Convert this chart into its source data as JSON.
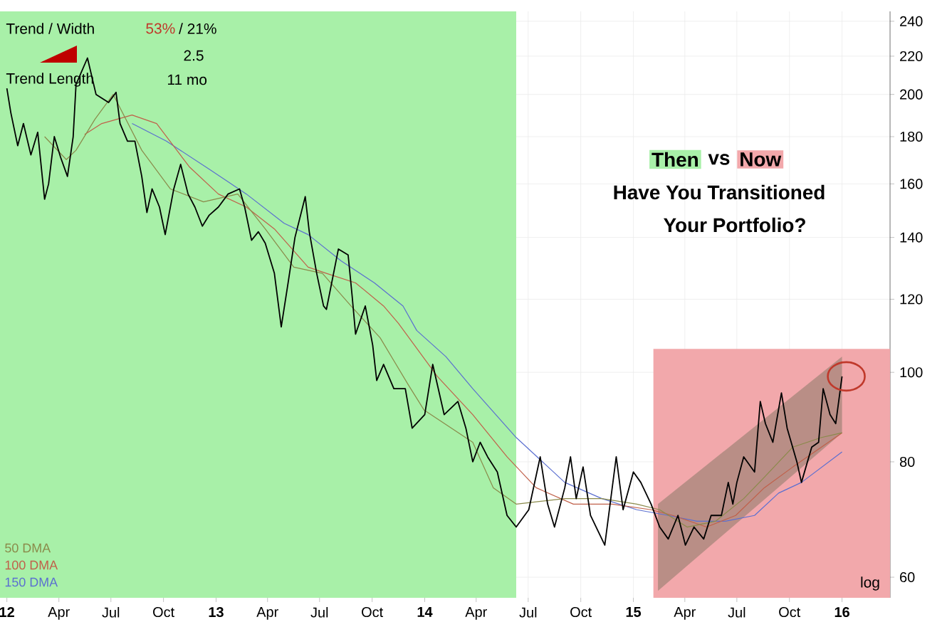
{
  "chart_data": {
    "type": "line",
    "annotations": [
      "Trend / Width",
      "53%",
      "/ 21%",
      "2.5",
      "Trend Length",
      "11 mo",
      "Then",
      "vs",
      "Now",
      "Have You Transitioned",
      "Your Portfolio?",
      "log"
    ],
    "xlim": [
      "2011-12-20",
      "2016-03-25"
    ],
    "ylim": [
      57,
      246
    ],
    "log": true,
    "grid": true,
    "legend": "bottom left",
    "xticks": [
      {
        "value": "2012-01-01",
        "label": "12"
      },
      {
        "value": "2012-04-01",
        "label": "Apr"
      },
      {
        "value": "2012-07-01",
        "label": "Jul"
      },
      {
        "value": "2012-10-01",
        "label": "Oct"
      },
      {
        "value": "2013-01-01",
        "label": "13"
      },
      {
        "value": "2013-04-01",
        "label": "Apr"
      },
      {
        "value": "2013-07-01",
        "label": "Jul"
      },
      {
        "value": "2013-10-01",
        "label": "Oct"
      },
      {
        "value": "2014-01-01",
        "label": "14"
      },
      {
        "value": "2014-04-01",
        "label": "Apr"
      },
      {
        "value": "2014-07-01",
        "label": "Jul"
      },
      {
        "value": "2014-10-01",
        "label": "Oct"
      },
      {
        "value": "2015-01-01",
        "label": "15"
      },
      {
        "value": "2015-04-01",
        "label": "Apr"
      },
      {
        "value": "2015-07-01",
        "label": "Jul"
      },
      {
        "value": "2015-10-01",
        "label": "Oct"
      },
      {
        "value": "2016-01-01",
        "label": "16"
      }
    ],
    "yticks": [
      60,
      80,
      100,
      120,
      140,
      160,
      180,
      200,
      220,
      240
    ],
    "bands": [
      {
        "axis": "x",
        "from": "2011-12-20",
        "to": "2014-06-10",
        "color": "#a8f0a8"
      }
    ],
    "series": [
      {
        "type": "area",
        "color": "#f2a8ab",
        "x": [
          "2015-02-05",
          "2016-03-25"
        ],
        "values": [
          null,
          null
        ],
        "lower": [
          57,
          57
        ],
        "upper": [
          106,
          106
        ]
      },
      {
        "type": "area",
        "color": "#b98e86",
        "x": [
          "2015-02-13",
          "2016-01-01"
        ],
        "values": [
          null,
          null
        ],
        "lower": [
          58,
          86
        ],
        "upper": [
          72,
          104
        ]
      },
      {
        "name": "150 DMA",
        "color": "#5b6fd0",
        "x": [
          "2012-08-07",
          "2012-10-06",
          "2012-12-20",
          "2013-02-23",
          "2013-04-30",
          "2013-06-11",
          "2013-08-08",
          "2013-10-05",
          "2013-11-24",
          "2013-12-18",
          "2014-02-07",
          "2014-03-26",
          "2014-06-10",
          "2014-09-03",
          "2014-11-07",
          "2015-01-07",
          "2015-03-03",
          "2015-04-22",
          "2015-06-11",
          "2015-08-01",
          "2015-09-12",
          "2015-10-22",
          "2016-01-01"
        ],
        "values": [
          186,
          178,
          166,
          156,
          145,
          141,
          132,
          125,
          118,
          111,
          104,
          96,
          85,
          76,
          73,
          71,
          70,
          69,
          69,
          70,
          74,
          76,
          82
        ]
      },
      {
        "name": "100 DMA",
        "color": "#c0604a",
        "x": [
          "2012-05-16",
          "2012-06-15",
          "2012-08-07",
          "2012-09-19",
          "2012-11-15",
          "2013-01-05",
          "2013-02-23",
          "2013-04-13",
          "2013-06-11",
          "2013-07-13",
          "2013-09-02",
          "2013-10-21",
          "2013-11-16",
          "2014-01-23",
          "2014-03-26",
          "2014-05-25",
          "2014-07-15",
          "2014-09-18",
          "2014-11-25",
          "2015-02-01",
          "2015-03-11",
          "2015-05-09",
          "2015-06-29",
          "2015-08-18",
          "2015-10-07",
          "2015-11-26",
          "2016-01-01"
        ],
        "values": [
          181,
          186,
          190,
          186,
          167,
          156,
          151,
          143,
          130,
          128,
          125,
          118,
          113,
          99,
          90,
          81,
          75,
          72,
          72,
          71,
          70,
          68,
          70,
          75,
          79,
          83,
          86
        ]
      },
      {
        "name": "50 DMA",
        "color": "#8a8a4a",
        "x": [
          "2012-03-07",
          "2012-04-14",
          "2012-05-01",
          "2012-06-03",
          "2012-07-05",
          "2012-08-24",
          "2012-10-13",
          "2012-12-10",
          "2013-02-08",
          "2013-03-28",
          "2013-05-17",
          "2013-07-06",
          "2013-08-25",
          "2013-10-15",
          "2013-12-03",
          "2013-12-31",
          "2014-03-26",
          "2014-05-01",
          "2014-06-10",
          "2014-09-03",
          "2014-11-07",
          "2015-01-07",
          "2015-02-16",
          "2015-04-05",
          "2015-05-25",
          "2015-07-13",
          "2015-08-18",
          "2015-10-07",
          "2015-11-26",
          "2016-01-01"
        ],
        "values": [
          180,
          170,
          174,
          188,
          200,
          174,
          158,
          153,
          156,
          143,
          130,
          128,
          118,
          109,
          97,
          91,
          84,
          75,
          72,
          73,
          73,
          72,
          71,
          68,
          69,
          73,
          77,
          83,
          85,
          86
        ]
      },
      {
        "color": "#000000",
        "x": [
          "2012-01-01",
          "2012-01-08",
          "2012-01-20",
          "2012-01-30",
          "2012-02-12",
          "2012-02-24",
          "2012-03-07",
          "2012-03-14",
          "2012-03-24",
          "2012-04-04",
          "2012-04-16",
          "2012-04-26",
          "2012-05-01",
          "2012-05-21",
          "2012-06-05",
          "2012-06-27",
          "2012-07-10",
          "2012-07-17",
          "2012-07-30",
          "2012-08-12",
          "2012-08-24",
          "2012-09-02",
          "2012-09-11",
          "2012-09-24",
          "2012-10-04",
          "2012-10-19",
          "2012-10-31",
          "2012-11-13",
          "2012-11-25",
          "2012-12-08",
          "2012-12-20",
          "2013-01-05",
          "2013-01-22",
          "2013-02-11",
          "2013-02-20",
          "2013-03-04",
          "2013-03-16",
          "2013-03-28",
          "2013-04-13",
          "2013-04-25",
          "2013-05-07",
          "2013-05-19",
          "2013-06-06",
          "2013-06-13",
          "2013-06-26",
          "2013-07-08",
          "2013-07-13",
          "2013-08-03",
          "2013-08-20",
          "2013-08-27",
          "2013-09-02",
          "2013-09-19",
          "2013-10-02",
          "2013-10-09",
          "2013-10-21",
          "2013-11-08",
          "2013-11-28",
          "2013-12-10",
          "2014-01-01",
          "2014-01-15",
          "2014-02-04",
          "2014-02-28",
          "2014-03-14",
          "2014-03-26",
          "2014-04-08",
          "2014-04-21",
          "2014-05-08",
          "2014-05-25",
          "2014-06-10",
          "2014-07-02",
          "2014-07-22",
          "2014-08-04",
          "2014-08-16",
          "2014-09-03",
          "2014-09-13",
          "2014-09-23",
          "2014-10-05",
          "2014-10-18",
          "2014-11-12",
          "2014-12-02",
          "2014-12-14",
          "2015-01-01",
          "2015-01-14",
          "2015-02-01",
          "2015-02-16",
          "2015-03-03",
          "2015-03-20",
          "2015-04-02",
          "2015-04-17",
          "2015-05-04",
          "2015-05-17",
          "2015-06-04",
          "2015-06-16",
          "2015-06-24",
          "2015-07-01",
          "2015-07-13",
          "2015-08-01",
          "2015-08-11",
          "2015-08-20",
          "2015-09-02",
          "2015-09-17",
          "2015-09-27",
          "2015-10-14",
          "2015-10-22",
          "2015-11-09",
          "2015-11-21",
          "2015-11-29",
          "2015-12-11",
          "2015-12-21",
          "2016-01-01"
        ],
        "values": [
          203,
          191,
          176,
          186,
          172,
          182,
          154,
          160,
          180,
          171,
          163,
          180,
          205,
          219,
          200,
          196,
          201,
          186,
          178,
          178,
          163,
          149,
          158,
          151,
          141,
          158,
          168,
          156,
          151,
          144,
          148,
          151,
          156,
          158,
          151,
          139,
          142,
          138,
          128,
          112,
          125,
          140,
          155,
          142,
          128,
          118,
          117,
          136,
          134,
          121,
          110,
          118,
          107,
          98,
          102,
          96,
          96,
          87,
          90,
          102,
          90,
          93,
          87,
          80,
          84,
          81,
          78,
          70,
          68,
          71,
          81,
          72,
          68,
          75,
          81,
          73,
          79,
          70,
          65,
          81,
          71,
          78,
          76,
          72,
          68,
          66,
          70,
          65,
          68,
          66,
          70,
          70,
          76,
          72,
          76,
          81,
          78,
          93,
          88,
          84,
          95,
          87,
          80,
          76,
          83,
          84,
          96,
          90,
          88,
          99
        ]
      }
    ]
  }
}
